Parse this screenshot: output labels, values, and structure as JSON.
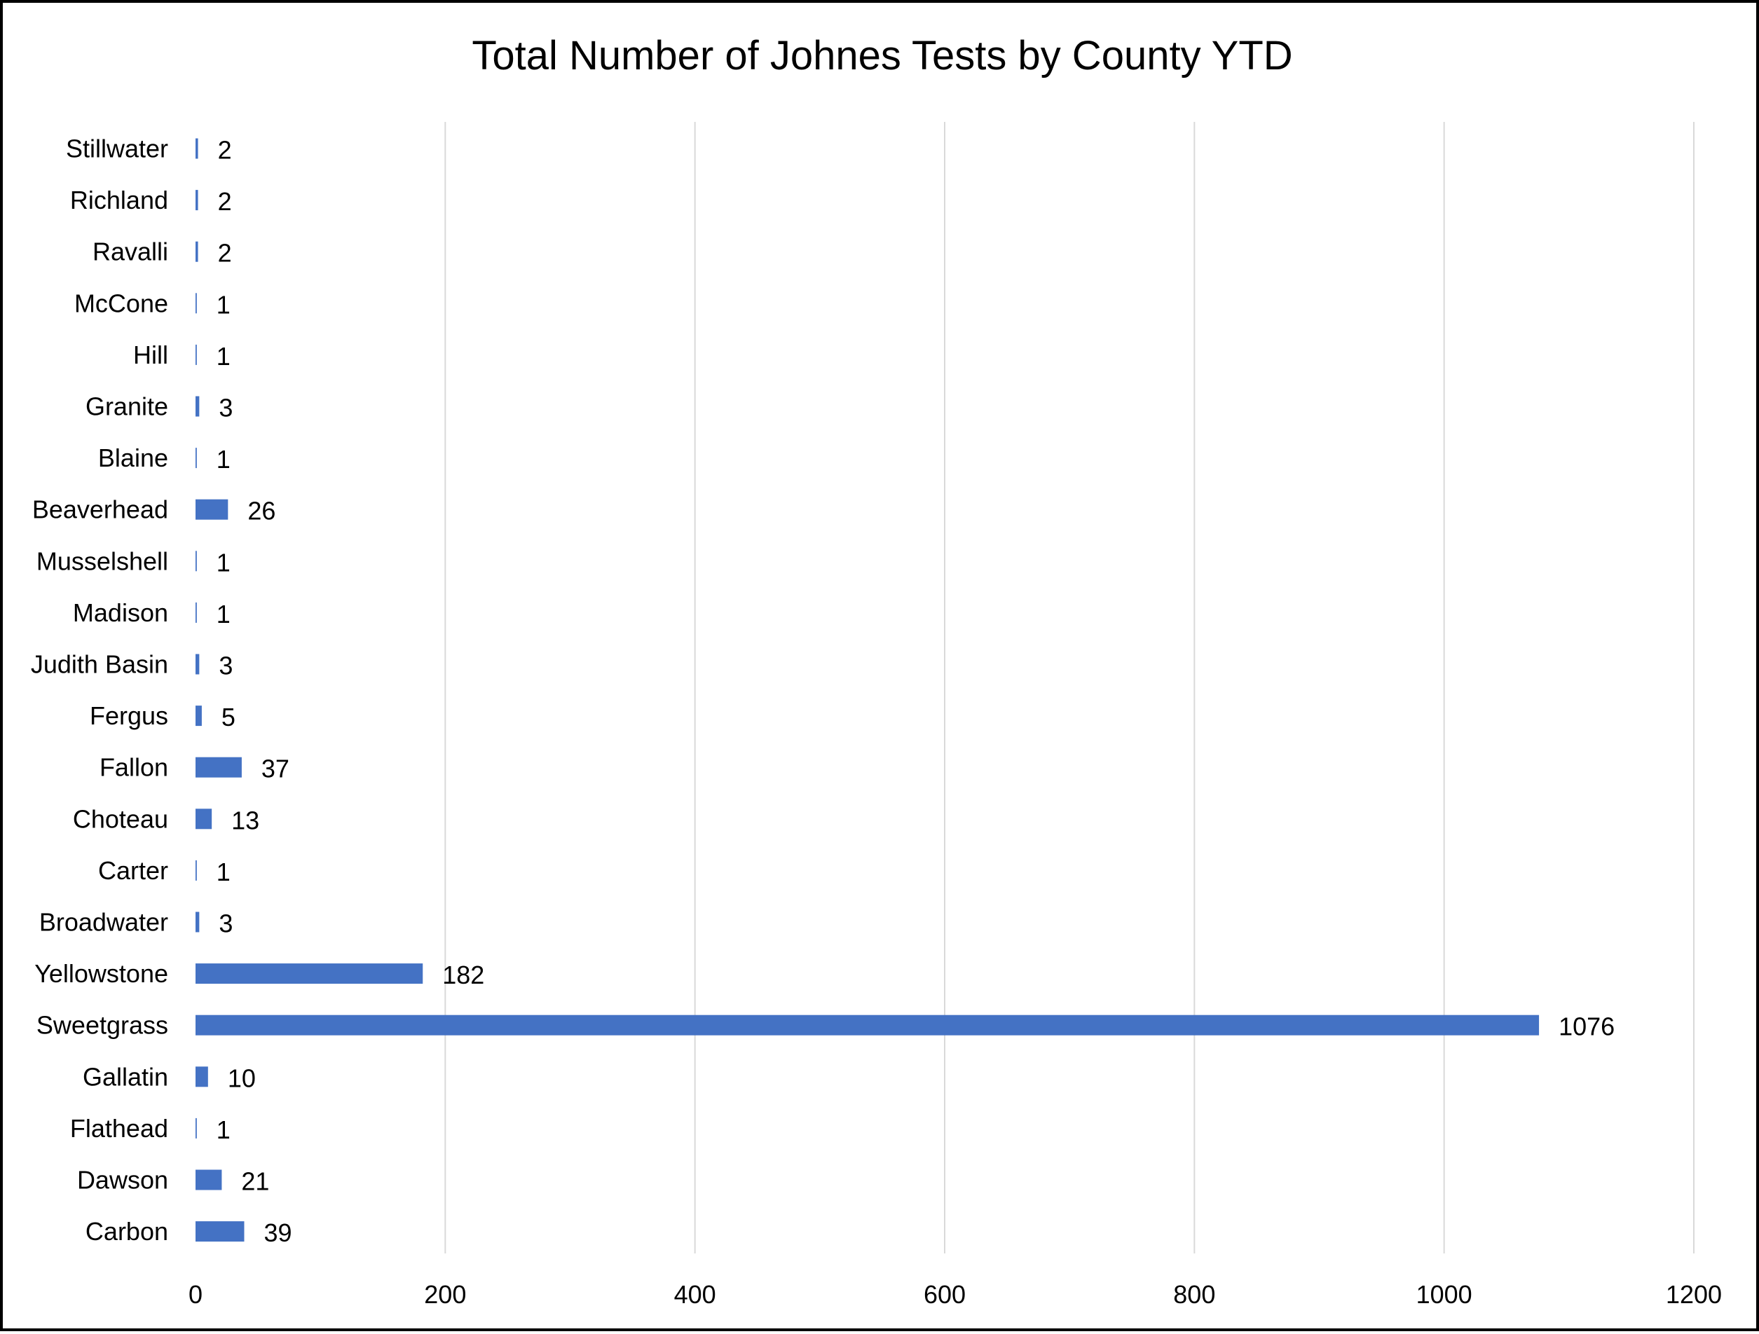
{
  "chart_data": {
    "type": "bar",
    "orientation": "horizontal",
    "title": "Total Number of Johnes Tests by County YTD",
    "xlabel": "",
    "ylabel": "",
    "categories": [
      "Stillwater",
      "Richland",
      "Ravalli",
      "McCone",
      "Hill",
      "Granite",
      "Blaine",
      "Beaverhead",
      "Musselshell",
      "Madison",
      "Judith Basin",
      "Fergus",
      "Fallon",
      "Choteau",
      "Carter",
      "Broadwater",
      "Yellowstone",
      "Sweetgrass",
      "Gallatin",
      "Flathead",
      "Dawson",
      "Carbon"
    ],
    "values": [
      2,
      2,
      2,
      1,
      1,
      3,
      1,
      26,
      1,
      1,
      3,
      5,
      37,
      13,
      1,
      3,
      182,
      1076,
      10,
      1,
      21,
      39
    ],
    "xlim": [
      0,
      1200
    ],
    "xticks": [
      0,
      200,
      400,
      600,
      800,
      1000,
      1200
    ],
    "grid": "vertical",
    "legend": "none",
    "bar_color": "#4472C4",
    "grid_color": "#D9D9D9",
    "data_labels": true
  }
}
